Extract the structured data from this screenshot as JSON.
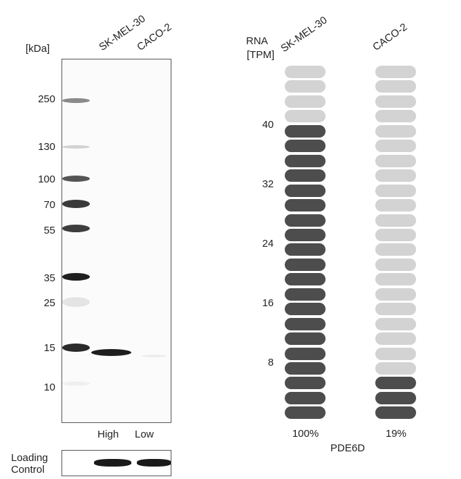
{
  "western_blot": {
    "unit_label": "[kDa]",
    "lanes": [
      "SK-MEL-30",
      "CACO-2"
    ],
    "mw_markers": [
      "250",
      "130",
      "100",
      "70",
      "55",
      "35",
      "25",
      "15",
      "10"
    ],
    "lane_captions": [
      "High",
      "Low"
    ],
    "loading_control_line1": "Loading",
    "loading_control_line2": "Control"
  },
  "rna": {
    "title_line1": "RNA",
    "title_line2": "[TPM]",
    "samples": [
      "SK-MEL-30",
      "CACO-2"
    ],
    "axis_ticks": [
      "40",
      "32",
      "24",
      "16",
      "8"
    ],
    "percentages": [
      "100%",
      "19%"
    ],
    "gene": "PDE6D",
    "total_segments": 24,
    "filled_segments": [
      20,
      3
    ],
    "colors": {
      "filled": "#4d4d4d",
      "empty": "#d3d3d3"
    }
  }
}
